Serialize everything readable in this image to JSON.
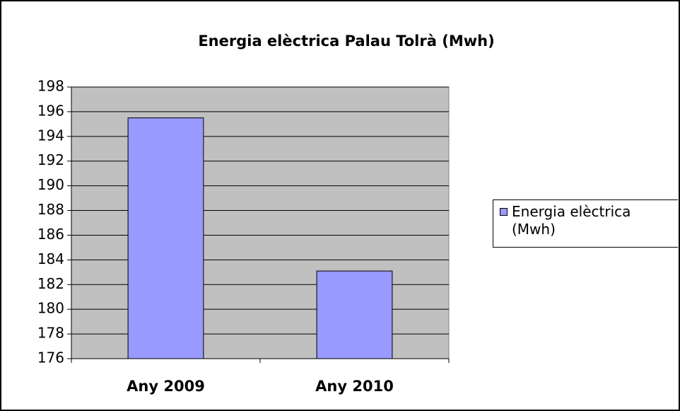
{
  "chart_data": {
    "type": "bar",
    "title": "Energia elèctrica Palau Tolrà (Mwh)",
    "categories": [
      "Any 2009",
      "Any 2010"
    ],
    "series": [
      {
        "name": "Energia elèctrica (Mwh)",
        "color": "#9999ff",
        "values": [
          195.5,
          183.1
        ]
      }
    ],
    "ylim": [
      176,
      198
    ],
    "yticks": [
      176,
      178,
      180,
      182,
      184,
      186,
      188,
      190,
      192,
      194,
      196,
      198
    ],
    "grid": true,
    "legend": "right"
  }
}
